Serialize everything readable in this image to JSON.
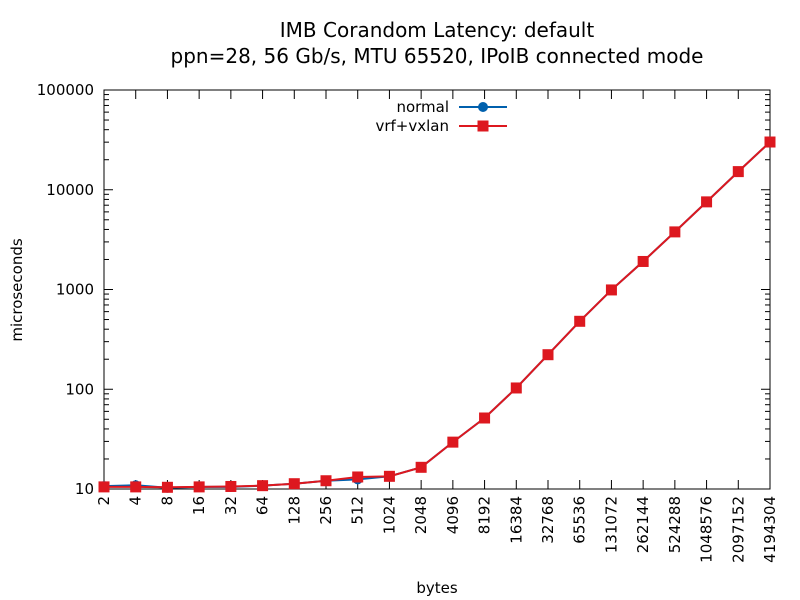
{
  "chart_data": {
    "type": "line",
    "title": "IMB Corandom Latency: default",
    "subtitle": "ppn=28, 56 Gb/s, MTU 65520, IPoIB connected mode",
    "xlabel": "bytes",
    "ylabel": "microseconds",
    "x_scale": "log2",
    "y_scale": "log10",
    "xlim": [
      2,
      4194304
    ],
    "ylim": [
      10,
      100000
    ],
    "x_ticks": [
      "2",
      "4",
      "8",
      "16",
      "32",
      "64",
      "128",
      "256",
      "512",
      "1024",
      "2048",
      "4096",
      "8192",
      "16384",
      "32768",
      "65536",
      "131072",
      "262144",
      "524288",
      "1048576",
      "2097152",
      "4194304"
    ],
    "y_ticks": [
      "10",
      "100",
      "1000",
      "10000",
      "100000"
    ],
    "grid": false,
    "legend_position": "top-center",
    "x": [
      2,
      4,
      8,
      16,
      32,
      64,
      128,
      256,
      512,
      1024,
      2048,
      4096,
      8192,
      16384,
      32768,
      65536,
      131072,
      262144,
      524288,
      1048576,
      2097152,
      4194304
    ],
    "series": [
      {
        "name": "normal",
        "color": "#0060ad",
        "marker": "circle",
        "values": [
          10.7,
          10.9,
          10.3,
          10.5,
          10.5,
          10.8,
          11.3,
          12.1,
          12.5,
          13.4,
          16.5,
          29.5,
          51.5,
          103,
          222,
          480,
          990,
          1910,
          3780,
          7560,
          15200,
          30100
        ]
      },
      {
        "name": "vrf+vxlan",
        "color": "#dd181f",
        "marker": "square",
        "values": [
          10.5,
          10.5,
          10.4,
          10.5,
          10.6,
          10.8,
          11.3,
          12.1,
          13.2,
          13.4,
          16.5,
          29.5,
          51.5,
          103,
          222,
          480,
          990,
          1910,
          3780,
          7560,
          15200,
          30100
        ]
      }
    ]
  }
}
